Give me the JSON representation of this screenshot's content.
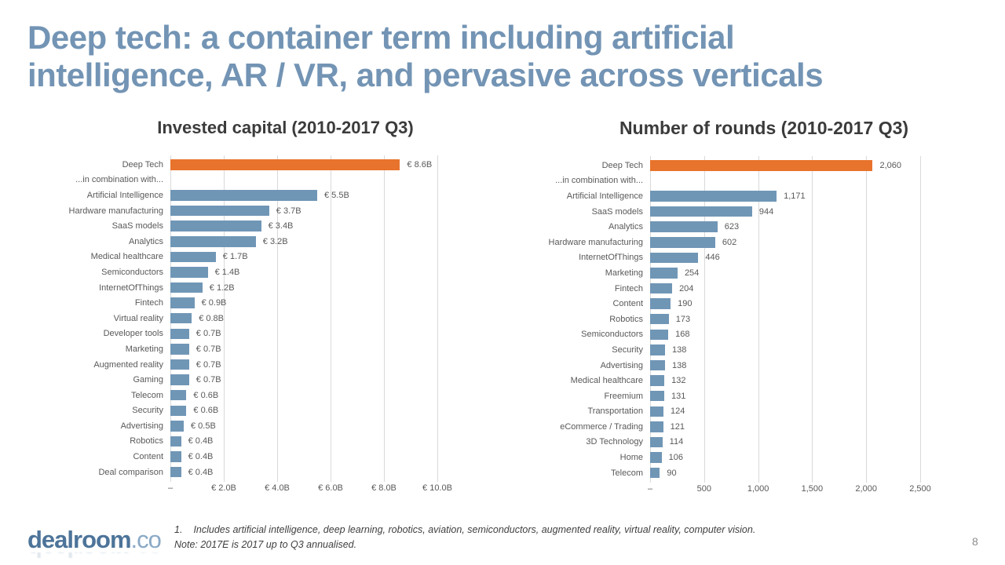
{
  "slide": {
    "title_line1": "Deep tech: a container term including artificial",
    "title_line2": "intelligence, AR / VR, and pervasive across verticals",
    "page_number": "8",
    "logo_main": "dealroom",
    "logo_suffix": ".co",
    "footnote_number": "1.",
    "footnote_text": "Includes artificial intelligence, deep learning, robotics, aviation, semiconductors, augmented reality, virtual reality, computer vision.",
    "footnote_note": "Note: 2017E is 2017 up to Q3 annualised."
  },
  "colors": {
    "title_blue": "#7394B4",
    "chart_title": "#3B3B3B",
    "bar_blue": "#7096B6",
    "accent_orange": "#E8732C",
    "gridline": "#D9D9D9",
    "axis_text": "#595959",
    "logo_blue": "#4D7499",
    "logo_light_blue": "#8AA9C6"
  },
  "chart_data": [
    {
      "type": "bar",
      "orientation": "horizontal",
      "title": "Invested capital (2010-2017 Q3)",
      "unit": "EUR billions",
      "xlim": [
        0,
        10
      ],
      "x_ticks": [
        "–",
        "€ 2.0B",
        "€ 4.0B",
        "€ 6.0B",
        "€ 8.0B",
        "€ 10.0B"
      ],
      "grid": true,
      "legend": "none",
      "highlight_index": 0,
      "categories": [
        "Deep Tech",
        "...in combination with...",
        "Artificial Intelligence",
        "Hardware manufacturing",
        "SaaS models",
        "Analytics",
        "Medical healthcare",
        "Semiconductors",
        "InternetOfThings",
        "Fintech",
        "Virtual reality",
        "Developer tools",
        "Marketing",
        "Augmented reality",
        "Gaming",
        "Telecom",
        "Security",
        "Advertising",
        "Robotics",
        "Content",
        "Deal comparison"
      ],
      "values": [
        8.6,
        null,
        5.5,
        3.7,
        3.4,
        3.2,
        1.7,
        1.4,
        1.2,
        0.9,
        0.8,
        0.7,
        0.7,
        0.7,
        0.7,
        0.6,
        0.6,
        0.5,
        0.4,
        0.4,
        0.4
      ],
      "value_labels": [
        "€ 8.6B",
        "",
        "€ 5.5B",
        "€ 3.7B",
        "€ 3.4B",
        "€ 3.2B",
        "€ 1.7B",
        "€ 1.4B",
        "€ 1.2B",
        "€ 0.9B",
        "€ 0.8B",
        "€ 0.7B",
        "€ 0.7B",
        "€ 0.7B",
        "€ 0.7B",
        "€ 0.6B",
        "€ 0.6B",
        "€ 0.5B",
        "€ 0.4B",
        "€ 0.4B",
        "€ 0.4B"
      ]
    },
    {
      "type": "bar",
      "orientation": "horizontal",
      "title": "Number of rounds (2010-2017 Q3)",
      "unit": "rounds",
      "xlim": [
        0,
        2500
      ],
      "x_ticks": [
        "–",
        "500",
        "1,000",
        "1,500",
        "2,000",
        "2,500"
      ],
      "grid": true,
      "legend": "none",
      "highlight_index": 0,
      "categories": [
        "Deep Tech",
        "...in combination with...",
        "Artificial Intelligence",
        "SaaS models",
        "Analytics",
        "Hardware manufacturing",
        "InternetOfThings",
        "Marketing",
        "Fintech",
        "Content",
        "Robotics",
        "Semiconductors",
        "Security",
        "Advertising",
        "Medical healthcare",
        "Freemium",
        "Transportation",
        "eCommerce / Trading",
        "3D Technology",
        "Home",
        "Telecom"
      ],
      "values": [
        2060,
        null,
        1171,
        944,
        623,
        602,
        446,
        254,
        204,
        190,
        173,
        168,
        138,
        138,
        132,
        131,
        124,
        121,
        114,
        106,
        90
      ],
      "value_labels": [
        "2,060",
        "",
        "1,171",
        "944",
        "623",
        "602",
        "446",
        "254",
        "204",
        "190",
        "173",
        "168",
        "138",
        "138",
        "132",
        "131",
        "124",
        "121",
        "114",
        "106",
        "90"
      ]
    }
  ]
}
